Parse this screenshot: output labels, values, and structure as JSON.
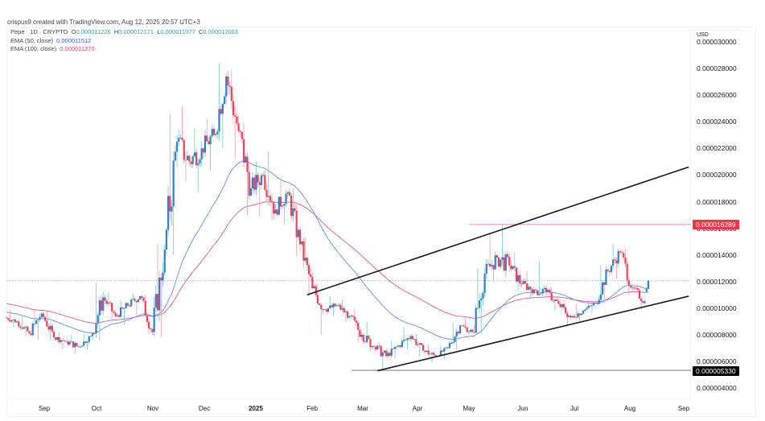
{
  "header": {
    "credit": "crispus9 created with TradingView.com, Aug 12, 2025 20:57 UTC+3"
  },
  "legend": {
    "symbol": "Pepe · 1D · CRYPTO",
    "open_label": "O",
    "open": "0.000011226",
    "high_label": "H",
    "high": "0.000012171",
    "low_label": "L",
    "low": "0.000011077",
    "close_label": "C",
    "close": "0.000012063",
    "ema50_label": "EMA (50, close)",
    "ema50_value": "0.000011512",
    "ema100_label": "EMA (100, close)",
    "ema100_value": "0.000011270"
  },
  "price_axis": {
    "currency": "USD",
    "ticks": [
      "0.000030000",
      "0.000028000",
      "0.000026000",
      "0.000024000",
      "0.000022000",
      "0.000020000",
      "0.000018000",
      "0.000016000",
      "0.000014000",
      "0.000012000",
      "0.000010000",
      "0.000008000",
      "0.000006000",
      "0.000004000"
    ]
  },
  "time_axis": {
    "ticks": [
      "Sep",
      "Oct",
      "Nov",
      "Dec",
      "2025",
      "Feb",
      "Mar",
      "Apr",
      "May",
      "Jun",
      "Jul",
      "Aug",
      "Sep"
    ]
  },
  "price_tags": {
    "resistance": "0.000016289",
    "support": "0.000005330"
  },
  "colors": {
    "up_body": "#2f7fd0",
    "up_wick": "#7fcfbf",
    "down_body": "#f23f5a",
    "down_wick": "#f7a5b1",
    "ema50": "#5b8cff",
    "ema100": "#f0527e",
    "trendline": "#1a1a1a",
    "resistance_line": "#f7a8ad",
    "support_line": "#9e9e9e",
    "last_price_line": "#90a8f0"
  },
  "chart_data": {
    "type": "candlestick",
    "title": "Pepe · 1D · CRYPTO",
    "ylabel": "USD",
    "ylim": [
      3.5e-06,
      3.05e-05
    ],
    "y_unit": "1e-6 USD",
    "x_ticks": [
      "Sep",
      "Oct",
      "Nov",
      "Dec",
      "2025",
      "Feb",
      "Mar",
      "Apr",
      "May",
      "Jun",
      "Jul",
      "Aug",
      "Sep"
    ],
    "last": {
      "open": 1.1226e-05,
      "high": 1.2171e-05,
      "low": 1.1077e-05,
      "close": 1.2063e-05
    },
    "ema50_last": 1.1512e-05,
    "ema100_last": 1.127e-05,
    "horizontal_levels": [
      {
        "label": "resistance",
        "value": 1.6289e-05
      },
      {
        "label": "support",
        "value": 5.33e-06
      }
    ],
    "trendlines": [
      {
        "name": "upper-channel",
        "from": [
          "2025-01-30",
          1.1e-05
        ],
        "to": [
          "2025-09-04",
          2.06e-05
        ]
      },
      {
        "name": "lower-channel",
        "from": [
          "2025-03-11",
          5.3e-06
        ],
        "to": [
          "2025-09-04",
          1.09e-05
        ]
      }
    ],
    "candles_weekly_approx_1e6": [
      {
        "d": "2024-08-12",
        "o": 9.3,
        "h": 9.8,
        "l": 8.6,
        "c": 9.0
      },
      {
        "d": "2024-08-19",
        "o": 9.0,
        "h": 9.4,
        "l": 7.9,
        "c": 8.1
      },
      {
        "d": "2024-08-26",
        "o": 8.1,
        "h": 9.9,
        "l": 7.6,
        "c": 9.6
      },
      {
        "d": "2024-09-02",
        "o": 9.6,
        "h": 9.8,
        "l": 7.6,
        "c": 7.8
      },
      {
        "d": "2024-09-09",
        "o": 7.8,
        "h": 8.2,
        "l": 6.9,
        "c": 7.5
      },
      {
        "d": "2024-09-16",
        "o": 7.5,
        "h": 8.0,
        "l": 6.6,
        "c": 7.1
      },
      {
        "d": "2024-09-23",
        "o": 7.1,
        "h": 8.1,
        "l": 6.9,
        "c": 7.9
      },
      {
        "d": "2024-09-30",
        "o": 7.9,
        "h": 11.9,
        "l": 7.6,
        "c": 10.8
      },
      {
        "d": "2024-10-07",
        "o": 10.8,
        "h": 11.2,
        "l": 8.9,
        "c": 9.4
      },
      {
        "d": "2024-10-14",
        "o": 9.4,
        "h": 10.6,
        "l": 8.8,
        "c": 10.2
      },
      {
        "d": "2024-10-21",
        "o": 10.2,
        "h": 11.1,
        "l": 9.4,
        "c": 10.9
      },
      {
        "d": "2024-10-28",
        "o": 10.9,
        "h": 11.0,
        "l": 8.0,
        "c": 8.2
      },
      {
        "d": "2024-11-04",
        "o": 8.2,
        "h": 14.8,
        "l": 7.8,
        "c": 14.4
      },
      {
        "d": "2024-11-11",
        "o": 14.4,
        "h": 24.6,
        "l": 14.0,
        "c": 22.5
      },
      {
        "d": "2024-11-18",
        "o": 22.5,
        "h": 25.2,
        "l": 19.5,
        "c": 21.0
      },
      {
        "d": "2024-11-25",
        "o": 21.0,
        "h": 23.5,
        "l": 18.7,
        "c": 22.0
      },
      {
        "d": "2024-12-02",
        "o": 22.0,
        "h": 24.2,
        "l": 20.3,
        "c": 23.0
      },
      {
        "d": "2024-12-09",
        "o": 23.0,
        "h": 28.4,
        "l": 22.0,
        "c": 27.4
      },
      {
        "d": "2024-12-16",
        "o": 27.4,
        "h": 27.9,
        "l": 21.2,
        "c": 23.3
      },
      {
        "d": "2024-12-23",
        "o": 23.3,
        "h": 23.9,
        "l": 17.0,
        "c": 19.0
      },
      {
        "d": "2024-12-30",
        "o": 19.0,
        "h": 21.0,
        "l": 16.9,
        "c": 20.0
      },
      {
        "d": "2025-01-06",
        "o": 20.0,
        "h": 21.8,
        "l": 16.6,
        "c": 17.4
      },
      {
        "d": "2025-01-13",
        "o": 17.4,
        "h": 19.7,
        "l": 16.3,
        "c": 18.7
      },
      {
        "d": "2025-01-20",
        "o": 18.7,
        "h": 19.0,
        "l": 13.9,
        "c": 14.8
      },
      {
        "d": "2025-01-27",
        "o": 14.8,
        "h": 15.3,
        "l": 10.9,
        "c": 11.5
      },
      {
        "d": "2025-02-03",
        "o": 11.5,
        "h": 11.8,
        "l": 8.0,
        "c": 9.9
      },
      {
        "d": "2025-02-10",
        "o": 9.9,
        "h": 10.9,
        "l": 9.4,
        "c": 10.2
      },
      {
        "d": "2025-02-17",
        "o": 10.2,
        "h": 10.6,
        "l": 9.0,
        "c": 9.4
      },
      {
        "d": "2025-02-24",
        "o": 9.4,
        "h": 9.9,
        "l": 7.4,
        "c": 8.0
      },
      {
        "d": "2025-03-03",
        "o": 8.0,
        "h": 9.0,
        "l": 6.8,
        "c": 7.1
      },
      {
        "d": "2025-03-10",
        "o": 7.1,
        "h": 7.4,
        "l": 5.3,
        "c": 6.4
      },
      {
        "d": "2025-03-17",
        "o": 6.4,
        "h": 7.6,
        "l": 6.2,
        "c": 7.2
      },
      {
        "d": "2025-03-24",
        "o": 7.2,
        "h": 8.6,
        "l": 6.9,
        "c": 7.9
      },
      {
        "d": "2025-03-31",
        "o": 7.9,
        "h": 8.1,
        "l": 6.4,
        "c": 6.8
      },
      {
        "d": "2025-04-07",
        "o": 6.8,
        "h": 7.3,
        "l": 5.9,
        "c": 6.4
      },
      {
        "d": "2025-04-14",
        "o": 6.4,
        "h": 7.2,
        "l": 6.2,
        "c": 7.0
      },
      {
        "d": "2025-04-21",
        "o": 7.0,
        "h": 8.9,
        "l": 6.9,
        "c": 8.7
      },
      {
        "d": "2025-04-28",
        "o": 8.7,
        "h": 9.3,
        "l": 8.0,
        "c": 8.2
      },
      {
        "d": "2025-05-05",
        "o": 8.2,
        "h": 13.0,
        "l": 8.1,
        "c": 12.6
      },
      {
        "d": "2025-05-12",
        "o": 12.6,
        "h": 15.6,
        "l": 12.0,
        "c": 13.8
      },
      {
        "d": "2025-05-19",
        "o": 13.8,
        "h": 16.3,
        "l": 12.3,
        "c": 13.2
      },
      {
        "d": "2025-05-26",
        "o": 13.2,
        "h": 14.2,
        "l": 11.3,
        "c": 11.8
      },
      {
        "d": "2025-06-02",
        "o": 11.8,
        "h": 12.8,
        "l": 10.8,
        "c": 11.4
      },
      {
        "d": "2025-06-09",
        "o": 11.4,
        "h": 13.5,
        "l": 10.9,
        "c": 11.2
      },
      {
        "d": "2025-06-16",
        "o": 11.2,
        "h": 11.6,
        "l": 9.8,
        "c": 10.3
      },
      {
        "d": "2025-06-23",
        "o": 10.3,
        "h": 10.6,
        "l": 8.6,
        "c": 9.3
      },
      {
        "d": "2025-06-30",
        "o": 9.3,
        "h": 10.3,
        "l": 9.0,
        "c": 9.8
      },
      {
        "d": "2025-07-07",
        "o": 9.8,
        "h": 10.6,
        "l": 9.6,
        "c": 10.4
      },
      {
        "d": "2025-07-14",
        "o": 10.4,
        "h": 13.2,
        "l": 10.3,
        "c": 12.8
      },
      {
        "d": "2025-07-21",
        "o": 12.8,
        "h": 14.8,
        "l": 12.2,
        "c": 14.2
      },
      {
        "d": "2025-07-28",
        "o": 14.2,
        "h": 14.4,
        "l": 11.0,
        "c": 11.5
      },
      {
        "d": "2025-08-04",
        "o": 11.5,
        "h": 11.8,
        "l": 9.9,
        "c": 10.5
      },
      {
        "d": "2025-08-11",
        "o": 11.226,
        "h": 12.171,
        "l": 11.077,
        "c": 12.063
      }
    ]
  }
}
